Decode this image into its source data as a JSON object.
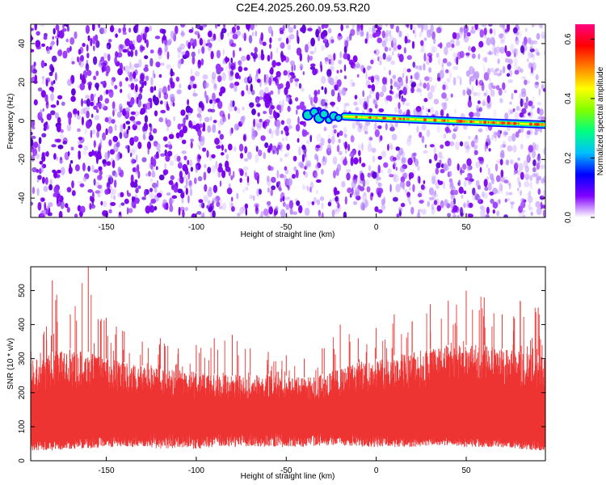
{
  "figure": {
    "title": "C2E4.2025.260.09.53.R20"
  },
  "chart_data": [
    {
      "type": "heatmap",
      "xlabel": "Height of straight line (km)",
      "ylabel": "Frequency (Hz)",
      "xlim": [
        -192,
        94
      ],
      "ylim": [
        -50,
        50
      ],
      "x_ticks": [
        -150,
        -100,
        -50,
        0,
        50
      ],
      "y_ticks": [
        -40,
        -20,
        0,
        20,
        40
      ],
      "x_tick_labels": [
        "-150",
        "-100",
        "-50",
        "0",
        "50"
      ],
      "y_tick_labels": [
        "-40",
        "-20",
        "0",
        "20",
        "40"
      ],
      "grid": false,
      "colorbar": {
        "label": "Normalized spectral amplitude",
        "range": [
          0.0,
          0.65
        ],
        "ticks": [
          0.0,
          0.2,
          0.4,
          0.6
        ],
        "tick_labels": [
          "0.0",
          "0.2",
          "0.4",
          "0.6"
        ],
        "colors": [
          "#ffffff",
          "#8000ff",
          "#0000ff",
          "#00c0ff",
          "#00ff80",
          "#80ff00",
          "#ffff00",
          "#ff8000",
          "#ff0000",
          "#ff0080"
        ]
      },
      "features": [
        {
          "name": "carrier line",
          "x_range": [
            -38,
            94
          ],
          "frequency_start": 3,
          "frequency_end": -2,
          "peak_amplitude": 0.6
        }
      ]
    },
    {
      "type": "area",
      "xlabel": "Height of straight line (km)",
      "ylabel": "SNR (10 * v/v)",
      "xlim": [
        -192,
        94
      ],
      "ylim": [
        0,
        570
      ],
      "x_ticks": [
        -150,
        -100,
        -50,
        0,
        50
      ],
      "y_ticks": [
        0,
        100,
        200,
        300,
        400,
        500
      ],
      "x_tick_labels": [
        "-150",
        "-100",
        "-50",
        "0",
        "50"
      ],
      "y_tick_labels": [
        "0",
        "100",
        "200",
        "300",
        "400",
        "500"
      ],
      "grid": false,
      "color": "#ee3333",
      "x": [
        -192,
        -180,
        -170,
        -160,
        -150,
        -140,
        -130,
        -120,
        -110,
        -100,
        -90,
        -80,
        -70,
        -60,
        -50,
        -40,
        -30,
        -20,
        -10,
        0,
        10,
        20,
        30,
        40,
        50,
        60,
        70,
        80,
        90,
        94
      ],
      "y_low": [
        30,
        30,
        35,
        35,
        40,
        40,
        40,
        35,
        35,
        35,
        40,
        40,
        40,
        40,
        40,
        40,
        45,
        45,
        40,
        40,
        40,
        40,
        45,
        45,
        40,
        40,
        40,
        35,
        30,
        30
      ],
      "y_mid_low": [
        60,
        60,
        65,
        70,
        75,
        75,
        80,
        80,
        80,
        80,
        80,
        80,
        85,
        85,
        80,
        80,
        85,
        85,
        80,
        80,
        70,
        70,
        70,
        70,
        70,
        65,
        65,
        60,
        60,
        55
      ],
      "y_mid_high": [
        300,
        320,
        330,
        320,
        300,
        290,
        280,
        270,
        270,
        260,
        255,
        250,
        250,
        255,
        250,
        245,
        255,
        270,
        290,
        300,
        310,
        320,
        330,
        340,
        340,
        340,
        330,
        320,
        310,
        300
      ],
      "y_peaks": [
        330,
        530,
        430,
        570,
        420,
        380,
        350,
        360,
        330,
        340,
        360,
        370,
        330,
        320,
        310,
        300,
        330,
        400,
        360,
        390,
        430,
        410,
        460,
        470,
        500,
        480,
        430,
        470,
        450,
        400
      ]
    }
  ]
}
